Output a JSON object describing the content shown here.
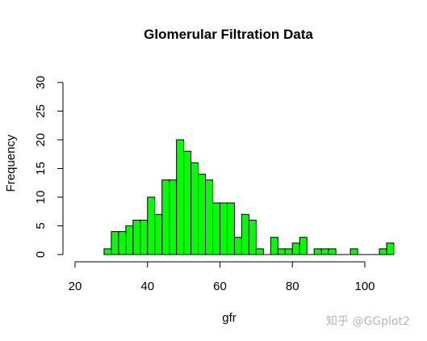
{
  "chart_data": {
    "type": "bar",
    "title": "Glomerular Filtration Data",
    "xlabel": "gfr",
    "ylabel": "Frequency",
    "bin_width": 2,
    "bins": [
      {
        "start": 28,
        "count": 1
      },
      {
        "start": 30,
        "count": 4
      },
      {
        "start": 32,
        "count": 4
      },
      {
        "start": 34,
        "count": 5
      },
      {
        "start": 36,
        "count": 6
      },
      {
        "start": 38,
        "count": 6
      },
      {
        "start": 40,
        "count": 10
      },
      {
        "start": 42,
        "count": 7
      },
      {
        "start": 44,
        "count": 13
      },
      {
        "start": 46,
        "count": 13
      },
      {
        "start": 48,
        "count": 20
      },
      {
        "start": 50,
        "count": 18
      },
      {
        "start": 52,
        "count": 16
      },
      {
        "start": 54,
        "count": 14
      },
      {
        "start": 56,
        "count": 13
      },
      {
        "start": 58,
        "count": 9
      },
      {
        "start": 60,
        "count": 9
      },
      {
        "start": 62,
        "count": 9
      },
      {
        "start": 64,
        "count": 3
      },
      {
        "start": 66,
        "count": 7
      },
      {
        "start": 68,
        "count": 6
      },
      {
        "start": 70,
        "count": 1
      },
      {
        "start": 72,
        "count": 0
      },
      {
        "start": 74,
        "count": 3
      },
      {
        "start": 76,
        "count": 1
      },
      {
        "start": 78,
        "count": 1
      },
      {
        "start": 80,
        "count": 2
      },
      {
        "start": 82,
        "count": 3
      },
      {
        "start": 84,
        "count": 0
      },
      {
        "start": 86,
        "count": 1
      },
      {
        "start": 88,
        "count": 1
      },
      {
        "start": 90,
        "count": 1
      },
      {
        "start": 92,
        "count": 0
      },
      {
        "start": 94,
        "count": 0
      },
      {
        "start": 96,
        "count": 1
      },
      {
        "start": 98,
        "count": 0
      },
      {
        "start": 100,
        "count": 0
      },
      {
        "start": 102,
        "count": 0
      },
      {
        "start": 104,
        "count": 1
      },
      {
        "start": 106,
        "count": 2
      }
    ],
    "xlim": [
      20,
      108
    ],
    "ylim": [
      0,
      30
    ],
    "x_ticks": [
      20,
      40,
      60,
      80,
      100
    ],
    "y_ticks": [
      0,
      5,
      10,
      15,
      20,
      25,
      30
    ],
    "bar_color": "#00ff00",
    "bar_edge_color": "#000000",
    "grid": false,
    "legend": "none"
  },
  "watermark": "知乎 @GGplot2"
}
